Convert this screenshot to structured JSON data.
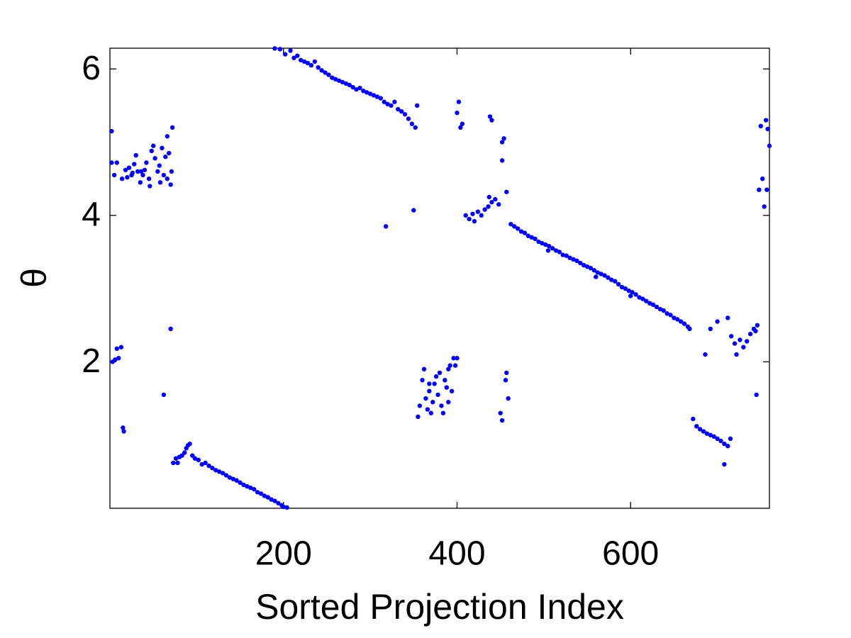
{
  "chart_data": {
    "type": "scatter",
    "x_label": "Sorted Projection Index",
    "y_label": "θ",
    "color": "#0000ff",
    "xlim": [
      0,
      760
    ],
    "ylim": [
      0,
      6.2832
    ],
    "xticks": [
      200,
      400,
      600
    ],
    "yticks": [
      2,
      4,
      6
    ],
    "grid": false,
    "x": [
      2,
      2,
      5,
      8,
      14,
      18,
      22,
      25,
      28,
      30,
      32,
      35,
      38,
      40,
      42,
      45,
      48,
      50,
      52,
      55,
      57,
      60,
      62,
      64,
      66,
      68,
      70,
      72,
      71,
      58,
      46,
      36,
      26,
      20,
      66,
      3,
      6,
      8,
      10,
      13,
      15,
      16,
      62,
      70,
      73,
      76,
      78,
      80,
      83,
      86,
      88,
      90,
      92,
      95,
      98,
      102,
      106,
      110,
      114,
      118,
      122,
      126,
      130,
      134,
      138,
      142,
      146,
      150,
      154,
      158,
      162,
      166,
      170,
      174,
      178,
      182,
      186,
      190,
      194,
      198,
      200,
      204,
      190,
      196,
      202,
      208,
      212,
      216,
      220,
      224,
      228,
      232,
      236,
      240,
      244,
      248,
      252,
      256,
      260,
      264,
      268,
      272,
      276,
      280,
      284,
      288,
      292,
      296,
      300,
      304,
      308,
      312,
      316,
      320,
      324,
      328,
      332,
      336,
      340,
      344,
      348,
      352,
      354,
      350,
      318,
      355,
      357,
      360,
      362,
      364,
      366,
      368,
      370,
      372,
      374,
      376,
      378,
      380,
      382,
      384,
      386,
      388,
      390,
      392,
      394,
      396,
      398,
      400,
      368,
      390,
      400,
      402,
      404,
      406,
      438,
      440,
      452,
      452,
      454,
      457,
      410,
      414,
      418,
      420,
      424,
      428,
      432,
      436,
      440,
      444,
      448,
      437,
      450,
      452,
      456,
      457,
      459,
      462,
      466,
      470,
      474,
      478,
      482,
      486,
      490,
      494,
      498,
      502,
      506,
      510,
      514,
      518,
      522,
      526,
      530,
      534,
      538,
      542,
      546,
      550,
      554,
      558,
      562,
      566,
      570,
      574,
      578,
      582,
      586,
      590,
      594,
      598,
      602,
      606,
      610,
      614,
      618,
      622,
      626,
      630,
      634,
      638,
      642,
      646,
      650,
      654,
      658,
      662,
      666,
      668,
      505,
      560,
      600,
      672,
      676,
      680,
      684,
      688,
      692,
      696,
      700,
      704,
      708,
      712,
      708,
      715,
      686,
      692,
      700,
      712,
      716,
      720,
      722,
      726,
      730,
      734,
      738,
      742,
      744,
      746,
      745,
      748,
      750,
      752,
      754,
      756,
      757,
      758,
      760
    ],
    "values": [
      5.15,
      4.72,
      4.55,
      4.72,
      4.5,
      4.62,
      4.65,
      4.55,
      4.7,
      4.82,
      4.6,
      4.45,
      4.55,
      4.62,
      4.72,
      4.5,
      4.88,
      4.95,
      4.78,
      4.6,
      4.68,
      4.92,
      4.55,
      4.8,
      4.5,
      4.85,
      4.42,
      5.2,
      4.6,
      4.45,
      4.4,
      4.6,
      4.58,
      4.52,
      5.08,
      2.0,
      2.03,
      2.18,
      2.05,
      2.2,
      1.1,
      1.05,
      1.55,
      2.45,
      0.62,
      0.68,
      0.62,
      0.7,
      0.72,
      0.76,
      0.82,
      0.86,
      0.88,
      0.72,
      0.68,
      0.66,
      0.6,
      0.62,
      0.58,
      0.55,
      0.52,
      0.5,
      0.48,
      0.45,
      0.42,
      0.4,
      0.38,
      0.35,
      0.32,
      0.3,
      0.28,
      0.26,
      0.22,
      0.2,
      0.17,
      0.15,
      0.12,
      0.1,
      0.07,
      0.04,
      0.02,
      0.01,
      6.28,
      6.27,
      6.2,
      6.25,
      6.15,
      6.18,
      6.12,
      6.1,
      6.08,
      6.05,
      6.1,
      6.02,
      5.98,
      5.95,
      5.92,
      5.88,
      5.86,
      5.84,
      5.82,
      5.8,
      5.78,
      5.75,
      5.72,
      5.74,
      5.7,
      5.68,
      5.66,
      5.64,
      5.62,
      5.6,
      5.55,
      5.52,
      5.5,
      5.55,
      5.45,
      5.42,
      5.38,
      5.32,
      5.25,
      5.2,
      5.5,
      4.07,
      3.85,
      1.25,
      1.4,
      1.75,
      1.9,
      1.5,
      1.35,
      1.6,
      1.3,
      1.45,
      1.7,
      1.8,
      1.55,
      1.85,
      1.4,
      1.3,
      1.75,
      1.65,
      1.9,
      1.95,
      1.6,
      2.05,
      1.95,
      2.05,
      1.7,
      1.45,
      5.4,
      5.55,
      5.2,
      5.25,
      5.35,
      5.3,
      4.75,
      5.0,
      5.05,
      4.32,
      4.0,
      3.95,
      4.02,
      3.92,
      4.05,
      4.0,
      4.08,
      4.12,
      4.18,
      4.22,
      4.15,
      4.25,
      1.3,
      1.2,
      1.75,
      1.85,
      1.5,
      3.88,
      3.85,
      3.82,
      3.78,
      3.76,
      3.72,
      3.7,
      3.68,
      3.64,
      3.62,
      3.6,
      3.58,
      3.55,
      3.52,
      3.5,
      3.46,
      3.45,
      3.42,
      3.4,
      3.38,
      3.35,
      3.32,
      3.3,
      3.28,
      3.25,
      3.22,
      3.2,
      3.18,
      3.15,
      3.12,
      3.1,
      3.06,
      3.02,
      3.0,
      2.97,
      2.95,
      2.92,
      2.88,
      2.86,
      2.83,
      2.8,
      2.78,
      2.75,
      2.72,
      2.7,
      2.66,
      2.64,
      2.6,
      2.58,
      2.55,
      2.52,
      2.48,
      2.45,
      3.52,
      3.16,
      2.9,
      1.22,
      1.12,
      1.08,
      1.05,
      1.02,
      1.0,
      0.98,
      0.95,
      0.92,
      0.88,
      0.85,
      0.6,
      0.95,
      2.1,
      2.45,
      2.55,
      2.6,
      2.35,
      2.25,
      2.1,
      2.3,
      2.2,
      2.28,
      2.38,
      2.45,
      2.42,
      2.5,
      1.55,
      4.35,
      5.22,
      4.5,
      4.12,
      5.3,
      4.35,
      5.18,
      4.95
    ]
  }
}
